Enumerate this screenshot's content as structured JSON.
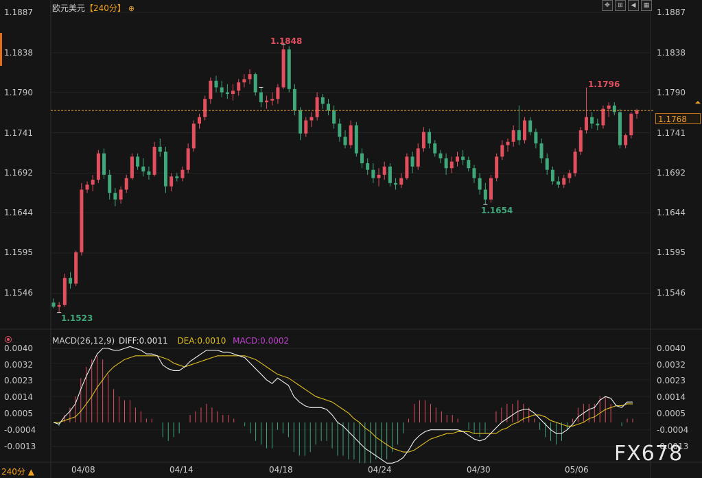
{
  "header": {
    "symbol": "欧元美元",
    "period_label": "【240分】",
    "zoom_icon": "zoom-in-icon"
  },
  "toolbar": {
    "buttons": [
      {
        "name": "crosshair-button",
        "icon": "crosshair-icon",
        "glyph": "✥"
      },
      {
        "name": "range-button",
        "icon": "bracket-icon",
        "glyph": "⊞"
      },
      {
        "name": "rewind-button",
        "icon": "rewind-icon",
        "glyph": "◀"
      },
      {
        "name": "settings-button",
        "icon": "frame-icon",
        "glyph": "▦"
      }
    ]
  },
  "price_axis": {
    "ticks": [
      "1.1887",
      "1.1838",
      "1.1790",
      "1.1741",
      "1.1692",
      "1.1644",
      "1.1595",
      "1.1546"
    ],
    "current_price": "1.1768"
  },
  "extremes": {
    "high_1": "1.1848",
    "high_2": "1.1796",
    "low_1": "1.1523",
    "low_2": "1.1654"
  },
  "macd": {
    "name": "MACD(26,12,9)",
    "diff_text": "DIFF:0.0011",
    "dea_text": "DEA:0.0010",
    "macd_text": "MACD:0.0002",
    "ticks": [
      "0.0040",
      "0.0032",
      "0.0023",
      "0.0014",
      "0.0005",
      "-0.0004",
      "-0.0013"
    ]
  },
  "dates": [
    "04/08",
    "04/14",
    "04/18",
    "04/24",
    "04/30",
    "05/06"
  ],
  "period_switch": "240分",
  "watermark": "FX678",
  "colors": {
    "up": "#e2505f",
    "down": "#3fa77a",
    "diff_line": "#f0f0f0",
    "dea_line": "#e0c020",
    "current_line": "#f0a030"
  },
  "chart_data": {
    "type": "candlestick",
    "y_range": [
      1.15,
      1.19
    ],
    "candles": [
      [
        1.1535,
        1.154,
        1.1528,
        1.153
      ],
      [
        1.153,
        1.1536,
        1.1523,
        1.1532
      ],
      [
        1.1532,
        1.157,
        1.153,
        1.1565
      ],
      [
        1.1565,
        1.1572,
        1.1552,
        1.1558
      ],
      [
        1.1558,
        1.1598,
        1.1555,
        1.1596
      ],
      [
        1.1596,
        1.168,
        1.1592,
        1.1672
      ],
      [
        1.1672,
        1.1682,
        1.1668,
        1.1678
      ],
      [
        1.1678,
        1.169,
        1.167,
        1.1684
      ],
      [
        1.1684,
        1.172,
        1.168,
        1.1716
      ],
      [
        1.1716,
        1.1722,
        1.1685,
        1.169
      ],
      [
        1.169,
        1.1696,
        1.166,
        1.1668
      ],
      [
        1.1668,
        1.1674,
        1.1652,
        1.166
      ],
      [
        1.166,
        1.1676,
        1.1655,
        1.1672
      ],
      [
        1.1672,
        1.169,
        1.1668,
        1.1686
      ],
      [
        1.1686,
        1.1716,
        1.1684,
        1.1712
      ],
      [
        1.1712,
        1.1716,
        1.1696,
        1.17
      ],
      [
        1.17,
        1.171,
        1.1688,
        1.1694
      ],
      [
        1.1694,
        1.17,
        1.1684,
        1.169
      ],
      [
        1.169,
        1.173,
        1.1688,
        1.1724
      ],
      [
        1.1724,
        1.1734,
        1.1712,
        1.1718
      ],
      [
        1.1718,
        1.1724,
        1.1668,
        1.1676
      ],
      [
        1.1676,
        1.1692,
        1.167,
        1.1688
      ],
      [
        1.1688,
        1.1692,
        1.1682,
        1.1686
      ],
      [
        1.1686,
        1.17,
        1.1682,
        1.1696
      ],
      [
        1.1696,
        1.1728,
        1.1692,
        1.1722
      ],
      [
        1.1722,
        1.1756,
        1.1718,
        1.1752
      ],
      [
        1.1752,
        1.1764,
        1.1746,
        1.176
      ],
      [
        1.176,
        1.1786,
        1.1756,
        1.1782
      ],
      [
        1.1782,
        1.1808,
        1.1776,
        1.1804
      ],
      [
        1.1804,
        1.181,
        1.179,
        1.1796
      ],
      [
        1.1796,
        1.1804,
        1.1784,
        1.179
      ],
      [
        1.179,
        1.18,
        1.1782,
        1.1788
      ],
      [
        1.1788,
        1.18,
        1.178,
        1.1792
      ],
      [
        1.1792,
        1.1806,
        1.1786,
        1.1802
      ],
      [
        1.1802,
        1.1812,
        1.1796,
        1.1806
      ],
      [
        1.1806,
        1.1818,
        1.18,
        1.1812
      ],
      [
        1.1812,
        1.1814,
        1.1786,
        1.179
      ],
      [
        1.179,
        1.1796,
        1.1772,
        1.1778
      ],
      [
        1.1778,
        1.1786,
        1.177,
        1.178
      ],
      [
        1.178,
        1.179,
        1.1774,
        1.1782
      ],
      [
        1.1782,
        1.18,
        1.1776,
        1.1796
      ],
      [
        1.1796,
        1.1848,
        1.1794,
        1.1842
      ],
      [
        1.1842,
        1.1846,
        1.179,
        1.1794
      ],
      [
        1.1794,
        1.18,
        1.1762,
        1.1768
      ],
      [
        1.1768,
        1.1772,
        1.1732,
        1.174
      ],
      [
        1.174,
        1.176,
        1.1736,
        1.1756
      ],
      [
        1.1756,
        1.1766,
        1.1748,
        1.176
      ],
      [
        1.176,
        1.179,
        1.1756,
        1.1784
      ],
      [
        1.1784,
        1.1788,
        1.177,
        1.1776
      ],
      [
        1.1776,
        1.1782,
        1.1762,
        1.1768
      ],
      [
        1.1768,
        1.1774,
        1.1746,
        1.1752
      ],
      [
        1.1752,
        1.1758,
        1.173,
        1.1736
      ],
      [
        1.1736,
        1.1744,
        1.1722,
        1.1726
      ],
      [
        1.1726,
        1.1756,
        1.1722,
        1.175
      ],
      [
        1.175,
        1.1754,
        1.1712,
        1.1716
      ],
      [
        1.1716,
        1.1722,
        1.1698,
        1.1704
      ],
      [
        1.1704,
        1.171,
        1.169,
        1.1696
      ],
      [
        1.1696,
        1.1704,
        1.168,
        1.1686
      ],
      [
        1.1686,
        1.1698,
        1.1676,
        1.169
      ],
      [
        1.169,
        1.1706,
        1.1684,
        1.17
      ],
      [
        1.17,
        1.1704,
        1.1676,
        1.168
      ],
      [
        1.168,
        1.1686,
        1.1672,
        1.1678
      ],
      [
        1.1678,
        1.1692,
        1.1674,
        1.1686
      ],
      [
        1.1686,
        1.1716,
        1.1684,
        1.1712
      ],
      [
        1.1712,
        1.1718,
        1.1692,
        1.17
      ],
      [
        1.17,
        1.1728,
        1.1696,
        1.1722
      ],
      [
        1.1722,
        1.1748,
        1.1718,
        1.1742
      ],
      [
        1.1742,
        1.1746,
        1.1722,
        1.1728
      ],
      [
        1.1728,
        1.1732,
        1.1712,
        1.1716
      ],
      [
        1.1716,
        1.172,
        1.1704,
        1.171
      ],
      [
        1.171,
        1.1716,
        1.169,
        1.1698
      ],
      [
        1.1698,
        1.1712,
        1.1692,
        1.1706
      ],
      [
        1.1706,
        1.1718,
        1.17,
        1.1712
      ],
      [
        1.1712,
        1.172,
        1.1702,
        1.1708
      ],
      [
        1.1708,
        1.1712,
        1.1694,
        1.1698
      ],
      [
        1.1698,
        1.1702,
        1.168,
        1.1686
      ],
      [
        1.1686,
        1.1692,
        1.1666,
        1.1672
      ],
      [
        1.1672,
        1.168,
        1.1654,
        1.166
      ],
      [
        1.166,
        1.169,
        1.1656,
        1.1686
      ],
      [
        1.1686,
        1.1716,
        1.1682,
        1.1712
      ],
      [
        1.1712,
        1.1732,
        1.1708,
        1.1726
      ],
      [
        1.1726,
        1.1734,
        1.1718,
        1.173
      ],
      [
        1.173,
        1.175,
        1.1724,
        1.1744
      ],
      [
        1.1744,
        1.1774,
        1.1726,
        1.1732
      ],
      [
        1.1732,
        1.176,
        1.1728,
        1.1756
      ],
      [
        1.1756,
        1.176,
        1.1738,
        1.1742
      ],
      [
        1.1742,
        1.1746,
        1.1722,
        1.1728
      ],
      [
        1.1728,
        1.1734,
        1.1704,
        1.171
      ],
      [
        1.171,
        1.1716,
        1.169,
        1.1696
      ],
      [
        1.1696,
        1.17,
        1.1678,
        1.1682
      ],
      [
        1.1682,
        1.1688,
        1.1674,
        1.1678
      ],
      [
        1.1678,
        1.169,
        1.1674,
        1.1686
      ],
      [
        1.1686,
        1.1696,
        1.168,
        1.1692
      ],
      [
        1.1692,
        1.1722,
        1.1688,
        1.1718
      ],
      [
        1.1718,
        1.1748,
        1.1714,
        1.1744
      ],
      [
        1.1744,
        1.1796,
        1.174,
        1.176
      ],
      [
        1.176,
        1.1766,
        1.1746,
        1.1752
      ],
      [
        1.1752,
        1.1758,
        1.1744,
        1.175
      ],
      [
        1.175,
        1.1774,
        1.1746,
        1.177
      ],
      [
        1.177,
        1.1778,
        1.176,
        1.1774
      ],
      [
        1.1774,
        1.1778,
        1.1762,
        1.1766
      ],
      [
        1.1766,
        1.177,
        1.1722,
        1.1726
      ],
      [
        1.1726,
        1.174,
        1.1722,
        1.1738
      ],
      [
        1.1738,
        1.1766,
        1.1734,
        1.1764
      ],
      [
        1.1764,
        1.177,
        1.1758,
        1.1768
      ]
    ],
    "diff": [
      0.0,
      -0.0001,
      0.0003,
      0.0006,
      0.001,
      0.0018,
      0.0025,
      0.0031,
      0.0037,
      0.004,
      0.004,
      0.0039,
      0.0039,
      0.004,
      0.0041,
      0.004,
      0.0039,
      0.0037,
      0.0037,
      0.0036,
      0.0031,
      0.0029,
      0.0028,
      0.0028,
      0.003,
      0.0033,
      0.0035,
      0.0037,
      0.0039,
      0.0039,
      0.0039,
      0.0038,
      0.0038,
      0.0037,
      0.0036,
      0.0035,
      0.0032,
      0.0029,
      0.0026,
      0.0023,
      0.0021,
      0.0024,
      0.0022,
      0.002,
      0.0014,
      0.0011,
      0.0009,
      0.0008,
      0.0008,
      0.0008,
      0.0007,
      0.0004,
      0.0,
      -0.0002,
      -0.0005,
      -0.0008,
      -0.0011,
      -0.0014,
      -0.0016,
      -0.0018,
      -0.002,
      -0.0022,
      -0.0022,
      -0.0021,
      -0.0019,
      -0.0015,
      -0.001,
      -0.0007,
      -0.0005,
      -0.0004,
      -0.0004,
      -0.0004,
      -0.0004,
      -0.0004,
      -0.0004,
      -0.0005,
      -0.0007,
      -0.0009,
      -0.001,
      -0.0009,
      -0.0006,
      -0.0003,
      0.0,
      0.0002,
      0.0004,
      0.0006,
      0.0007,
      0.0007,
      0.0005,
      0.0002,
      -0.0001,
      -0.0004,
      -0.0006,
      -0.0006,
      -0.0004,
      -0.0001,
      0.0003,
      0.0005,
      0.0007,
      0.0008,
      0.0012,
      0.0014,
      0.0013,
      0.0009,
      0.0008,
      0.0011,
      0.0011
    ],
    "dea": [
      0.0,
      0.0,
      0.0001,
      0.0002,
      0.0003,
      0.0006,
      0.001,
      0.0014,
      0.0019,
      0.0023,
      0.0027,
      0.003,
      0.0032,
      0.0034,
      0.0035,
      0.0036,
      0.0036,
      0.0036,
      0.0036,
      0.0036,
      0.0035,
      0.0034,
      0.0032,
      0.0031,
      0.003,
      0.0031,
      0.0032,
      0.0033,
      0.0034,
      0.0035,
      0.0036,
      0.0036,
      0.0036,
      0.0036,
      0.0036,
      0.0036,
      0.0035,
      0.0034,
      0.0032,
      0.003,
      0.0028,
      0.0026,
      0.0025,
      0.0024,
      0.0022,
      0.002,
      0.0018,
      0.0016,
      0.0014,
      0.0013,
      0.0012,
      0.0011,
      0.0009,
      0.0007,
      0.0005,
      0.0002,
      0.0,
      -0.0003,
      -0.0005,
      -0.0008,
      -0.001,
      -0.0012,
      -0.0014,
      -0.0015,
      -0.0016,
      -0.0016,
      -0.0015,
      -0.0013,
      -0.0011,
      -0.0009,
      -0.0008,
      -0.0007,
      -0.0006,
      -0.0006,
      -0.0005,
      -0.0005,
      -0.0005,
      -0.0006,
      -0.0006,
      -0.0006,
      -0.0006,
      -0.0006,
      -0.0004,
      -0.0003,
      -0.0001,
      0.0,
      0.0002,
      0.0003,
      0.0004,
      0.0004,
      0.0003,
      0.0001,
      0.0,
      -0.0001,
      -0.0002,
      -0.0002,
      -0.0001,
      0.0,
      0.0002,
      0.0003,
      0.0005,
      0.0007,
      0.0008,
      0.0009,
      0.0009,
      0.001,
      0.001
    ]
  }
}
